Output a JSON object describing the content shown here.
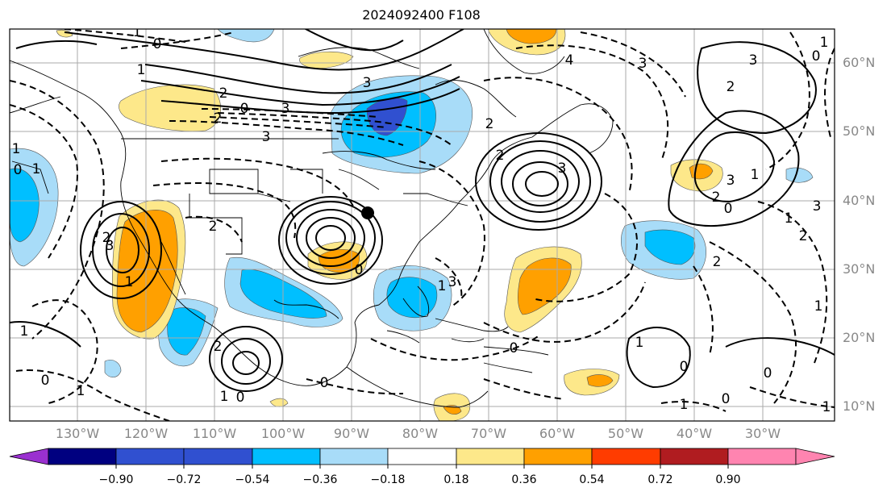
{
  "title": "2024092400 F108",
  "map": {
    "lon_labels": [
      "130°W",
      "120°W",
      "110°W",
      "100°W",
      "90°W",
      "80°W",
      "70°W",
      "60°W",
      "50°W",
      "40°W",
      "30°W"
    ],
    "lat_labels": [
      "60°N",
      "50°N",
      "40°N",
      "30°N",
      "20°N",
      "10°N"
    ],
    "marker": "black-dot",
    "colors": {
      "gridline": "#aaaaaa",
      "contour": "#000000"
    },
    "contour_labels": [
      {
        "text": "0"
      },
      {
        "text": "1"
      },
      {
        "text": "1"
      },
      {
        "text": "2"
      },
      {
        "text": "0"
      },
      {
        "text": "3"
      },
      {
        "text": "2"
      },
      {
        "text": "3"
      },
      {
        "text": "3"
      },
      {
        "text": "4"
      },
      {
        "text": "3"
      },
      {
        "text": "2"
      },
      {
        "text": "3"
      },
      {
        "text": "2"
      },
      {
        "text": "2"
      },
      {
        "text": "3"
      },
      {
        "text": "2"
      },
      {
        "text": "1"
      },
      {
        "text": "3"
      },
      {
        "text": "0"
      },
      {
        "text": "3"
      },
      {
        "text": "1"
      },
      {
        "text": "2"
      },
      {
        "text": "2"
      },
      {
        "text": "1"
      },
      {
        "text": "3"
      },
      {
        "text": "0"
      },
      {
        "text": "1"
      },
      {
        "text": "1"
      },
      {
        "text": "2"
      },
      {
        "text": "0"
      },
      {
        "text": "1"
      },
      {
        "text": "0"
      },
      {
        "text": "2"
      },
      {
        "text": "0"
      },
      {
        "text": "1"
      },
      {
        "text": "1"
      },
      {
        "text": "0"
      },
      {
        "text": "0"
      },
      {
        "text": "0"
      },
      {
        "text": "1"
      },
      {
        "text": "1"
      },
      {
        "text": "0"
      },
      {
        "text": "1"
      },
      {
        "text": "1"
      },
      {
        "text": "0"
      },
      {
        "text": "1"
      },
      {
        "text": "0"
      },
      {
        "text": "1"
      },
      {
        "text": "2"
      },
      {
        "text": "3"
      }
    ]
  },
  "colorbar": {
    "colors": [
      "#9a30d0",
      "#000080",
      "#3050d0",
      "#00bfff",
      "#a8dcf8",
      "#ffffff",
      "#fde88a",
      "#ffa000",
      "#ff3c00",
      "#b01c20",
      "#ff84b0"
    ],
    "ticks": [
      "−0.90",
      "−0.72",
      "−0.54",
      "−0.36",
      "−0.18",
      "0.18",
      "0.36",
      "0.54",
      "0.72",
      "0.90"
    ]
  }
}
